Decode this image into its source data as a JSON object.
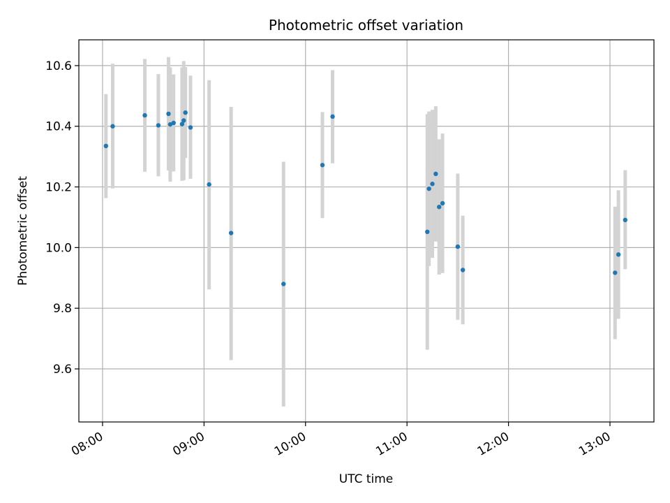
{
  "chart_data": {
    "type": "scatter",
    "title": "Photometric offset variation",
    "xlabel": "UTC time",
    "ylabel": "Photometric offset",
    "x_axis_type": "time",
    "xlim": [
      "07:46",
      "13:26"
    ],
    "ylim": [
      9.425,
      10.685
    ],
    "grid": true,
    "x_ticks": [
      "08:00",
      "09:00",
      "10:00",
      "11:00",
      "12:00",
      "13:00"
    ],
    "y_ticks": [
      9.6,
      9.8,
      10.0,
      10.2,
      10.4,
      10.6
    ],
    "y_tick_labels": [
      "9.6",
      "9.8",
      "10.0",
      "10.2",
      "10.4",
      "10.6"
    ],
    "point_color": "#1f77b4",
    "errorbar_color": "#d3d3d3",
    "points": [
      {
        "x": "08:02",
        "y": 10.335,
        "low": 10.163,
        "high": 10.506
      },
      {
        "x": "08:06",
        "y": 10.4,
        "low": 10.195,
        "high": 10.606
      },
      {
        "x": "08:25",
        "y": 10.436,
        "low": 10.25,
        "high": 10.622
      },
      {
        "x": "08:33",
        "y": 10.403,
        "low": 10.235,
        "high": 10.572
      },
      {
        "x": "08:39",
        "y": 10.441,
        "low": 10.254,
        "high": 10.628
      },
      {
        "x": "08:40",
        "y": 10.406,
        "low": 10.217,
        "high": 10.594
      },
      {
        "x": "08:42",
        "y": 10.411,
        "low": 10.251,
        "high": 10.571
      },
      {
        "x": "08:47",
        "y": 10.407,
        "low": 10.22,
        "high": 10.594
      },
      {
        "x": "08:48",
        "y": 10.419,
        "low": 10.222,
        "high": 10.615
      },
      {
        "x": "08:49",
        "y": 10.445,
        "low": 10.295,
        "high": 10.595
      },
      {
        "x": "08:52",
        "y": 10.396,
        "low": 10.227,
        "high": 10.567
      },
      {
        "x": "09:03",
        "y": 10.208,
        "low": 9.862,
        "high": 10.552
      },
      {
        "x": "09:16",
        "y": 10.048,
        "low": 9.629,
        "high": 10.464
      },
      {
        "x": "09:47",
        "y": 9.88,
        "low": 9.476,
        "high": 10.283
      },
      {
        "x": "10:10",
        "y": 10.272,
        "low": 10.097,
        "high": 10.447
      },
      {
        "x": "10:16",
        "y": 10.432,
        "low": 10.278,
        "high": 10.585
      },
      {
        "x": "11:12",
        "y": 10.052,
        "low": 9.663,
        "high": 10.44
      },
      {
        "x": "11:13",
        "y": 10.194,
        "low": 9.939,
        "high": 10.449
      },
      {
        "x": "11:15",
        "y": 10.21,
        "low": 9.966,
        "high": 10.454
      },
      {
        "x": "11:17",
        "y": 10.243,
        "low": 10.02,
        "high": 10.466
      },
      {
        "x": "11:19",
        "y": 10.134,
        "low": 9.911,
        "high": 10.357
      },
      {
        "x": "11:21",
        "y": 10.146,
        "low": 9.916,
        "high": 10.376
      },
      {
        "x": "11:30",
        "y": 10.003,
        "low": 9.762,
        "high": 10.244
      },
      {
        "x": "11:33",
        "y": 9.926,
        "low": 9.747,
        "high": 10.105
      },
      {
        "x": "13:03",
        "y": 9.917,
        "low": 9.698,
        "high": 10.135
      },
      {
        "x": "13:05",
        "y": 9.977,
        "low": 9.765,
        "high": 10.189
      },
      {
        "x": "13:09",
        "y": 10.091,
        "low": 9.929,
        "high": 10.255
      }
    ]
  }
}
